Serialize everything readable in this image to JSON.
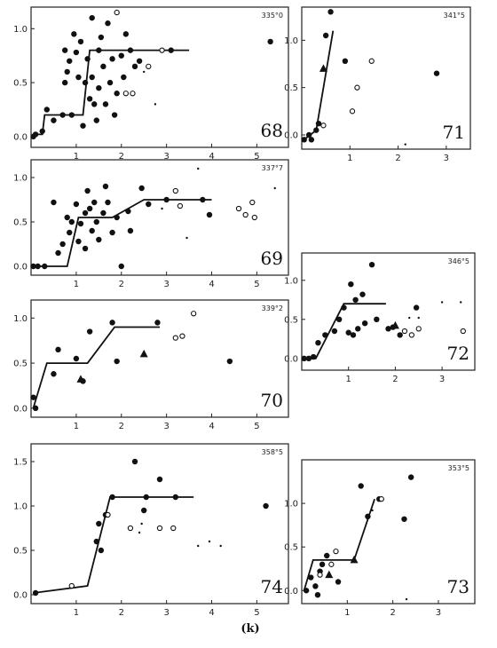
{
  "xlabel": "(k)",
  "chart_data": [
    {
      "type": "scatter",
      "panel_number": "68",
      "label": "335°0",
      "xlim": [
        0,
        5.7
      ],
      "ylim": [
        -0.1,
        1.2
      ],
      "xticks": [
        1,
        2,
        3,
        4,
        5
      ],
      "yticks": [
        0.0,
        0.5,
        1.0
      ],
      "ytick_labels": [
        "0.0",
        "0.5",
        "1.0"
      ],
      "fit_line": {
        "x": [
          0.05,
          0.25,
          0.3,
          0.7,
          1.15,
          1.3,
          3.5
        ],
        "y": [
          0.02,
          0.02,
          0.2,
          0.2,
          0.2,
          0.8,
          0.8
        ]
      },
      "filled": [
        [
          0.05,
          0.0
        ],
        [
          0.1,
          0.02
        ],
        [
          0.25,
          0.05
        ],
        [
          0.35,
          0.25
        ],
        [
          0.5,
          0.15
        ],
        [
          0.7,
          0.2
        ],
        [
          0.9,
          0.2
        ],
        [
          0.75,
          0.5
        ],
        [
          0.75,
          0.8
        ],
        [
          0.8,
          0.6
        ],
        [
          0.85,
          0.7
        ],
        [
          0.95,
          0.95
        ],
        [
          1.0,
          0.78
        ],
        [
          1.05,
          0.55
        ],
        [
          1.1,
          0.88
        ],
        [
          1.15,
          0.1
        ],
        [
          1.2,
          0.5
        ],
        [
          1.25,
          0.72
        ],
        [
          1.3,
          0.35
        ],
        [
          1.35,
          0.55
        ],
        [
          1.35,
          1.1
        ],
        [
          1.4,
          0.3
        ],
        [
          1.45,
          0.15
        ],
        [
          1.5,
          0.45
        ],
        [
          1.5,
          0.8
        ],
        [
          1.55,
          0.92
        ],
        [
          1.6,
          0.65
        ],
        [
          1.65,
          0.3
        ],
        [
          1.7,
          1.05
        ],
        [
          1.75,
          0.5
        ],
        [
          1.8,
          0.72
        ],
        [
          1.85,
          0.2
        ],
        [
          1.9,
          0.4
        ],
        [
          2.0,
          0.75
        ],
        [
          2.05,
          0.55
        ],
        [
          2.1,
          0.95
        ],
        [
          2.2,
          0.8
        ],
        [
          2.3,
          0.65
        ],
        [
          2.4,
          0.7
        ],
        [
          3.1,
          0.8
        ],
        [
          5.3,
          0.88
        ]
      ],
      "open": [
        [
          1.9,
          1.15
        ],
        [
          2.1,
          0.4
        ],
        [
          2.25,
          0.4
        ],
        [
          2.6,
          0.65
        ],
        [
          2.9,
          0.8
        ]
      ],
      "triangles": [],
      "dots": [
        [
          2.5,
          0.6
        ],
        [
          2.75,
          0.3
        ]
      ]
    },
    {
      "type": "scatter",
      "panel_number": "71",
      "label": "341°5",
      "xlim": [
        0,
        3.5
      ],
      "ylim": [
        -0.15,
        1.35
      ],
      "xticks": [
        1,
        2,
        3
      ],
      "yticks": [
        0.0,
        0.5,
        1.0
      ],
      "ytick_labels": [
        "0.0",
        "0.5",
        "1.0"
      ],
      "fit_line": {
        "x": [
          0.05,
          0.3,
          0.65
        ],
        "y": [
          -0.05,
          0.05,
          1.1
        ]
      },
      "filled": [
        [
          0.05,
          -0.05
        ],
        [
          0.15,
          0.0
        ],
        [
          0.2,
          -0.05
        ],
        [
          0.3,
          0.05
        ],
        [
          0.35,
          0.12
        ],
        [
          0.5,
          1.05
        ],
        [
          0.6,
          1.3
        ],
        [
          0.9,
          0.78
        ],
        [
          2.8,
          0.65
        ]
      ],
      "open": [
        [
          0.45,
          0.1
        ],
        [
          1.05,
          0.25
        ],
        [
          1.15,
          0.5
        ],
        [
          1.45,
          0.78
        ]
      ],
      "triangles": [
        [
          0.45,
          0.7
        ]
      ],
      "dots": [
        [
          2.15,
          -0.1
        ]
      ]
    },
    {
      "type": "scatter",
      "panel_number": "69",
      "label": "337°7",
      "xlim": [
        0,
        5.7
      ],
      "ylim": [
        -0.1,
        1.2
      ],
      "xticks": [
        1,
        2,
        3,
        4,
        5
      ],
      "yticks": [
        0.0,
        0.5,
        1.0
      ],
      "ytick_labels": [
        "0.0",
        "0.5",
        "1.0"
      ],
      "fit_line": {
        "x": [
          0.05,
          0.8,
          1.05,
          1.8,
          2.5,
          4.0
        ],
        "y": [
          0.0,
          0.0,
          0.55,
          0.55,
          0.75,
          0.75
        ]
      },
      "filled": [
        [
          0.05,
          0.0
        ],
        [
          0.15,
          0.0
        ],
        [
          0.3,
          0.0
        ],
        [
          0.5,
          0.72
        ],
        [
          0.6,
          0.15
        ],
        [
          0.7,
          0.25
        ],
        [
          0.8,
          0.55
        ],
        [
          0.85,
          0.38
        ],
        [
          0.9,
          0.5
        ],
        [
          1.0,
          0.7
        ],
        [
          1.05,
          0.28
        ],
        [
          1.1,
          0.48
        ],
        [
          1.2,
          0.6
        ],
        [
          1.2,
          0.2
        ],
        [
          1.25,
          0.85
        ],
        [
          1.3,
          0.65
        ],
        [
          1.35,
          0.4
        ],
        [
          1.4,
          0.72
        ],
        [
          1.45,
          0.5
        ],
        [
          1.5,
          0.3
        ],
        [
          1.6,
          0.6
        ],
        [
          1.65,
          0.9
        ],
        [
          1.7,
          0.72
        ],
        [
          1.8,
          0.38
        ],
        [
          1.9,
          0.55
        ],
        [
          2.0,
          0.0
        ],
        [
          2.15,
          0.62
        ],
        [
          2.2,
          0.4
        ],
        [
          2.45,
          0.88
        ],
        [
          2.6,
          0.7
        ],
        [
          3.0,
          0.75
        ],
        [
          3.8,
          0.75
        ],
        [
          3.95,
          0.58
        ]
      ],
      "open": [
        [
          3.2,
          0.85
        ],
        [
          3.3,
          0.68
        ],
        [
          4.6,
          0.65
        ],
        [
          4.75,
          0.58
        ],
        [
          4.9,
          0.72
        ],
        [
          4.95,
          0.55
        ]
      ],
      "triangles": [],
      "dots": [
        [
          2.9,
          0.65
        ],
        [
          3.45,
          0.32
        ],
        [
          3.7,
          1.1
        ],
        [
          5.4,
          0.88
        ]
      ]
    },
    {
      "type": "scatter",
      "panel_number": "72",
      "label": "346°5",
      "xlim": [
        0,
        3.7
      ],
      "ylim": [
        -0.15,
        1.35
      ],
      "xticks": [
        1,
        2,
        3
      ],
      "yticks": [
        0.0,
        0.5,
        1.0
      ],
      "ytick_labels": [
        "0.0",
        "0.5",
        "1.0"
      ],
      "fit_line": {
        "x": [
          0.05,
          0.3,
          0.9,
          1.8
        ],
        "y": [
          0.0,
          0.0,
          0.7,
          0.7
        ]
      },
      "filled": [
        [
          0.05,
          0.0
        ],
        [
          0.15,
          0.0
        ],
        [
          0.25,
          0.02
        ],
        [
          0.35,
          0.2
        ],
        [
          0.5,
          0.3
        ],
        [
          0.7,
          0.35
        ],
        [
          0.8,
          0.5
        ],
        [
          0.9,
          0.65
        ],
        [
          1.0,
          0.33
        ],
        [
          1.05,
          0.95
        ],
        [
          1.1,
          0.3
        ],
        [
          1.15,
          0.75
        ],
        [
          1.2,
          0.38
        ],
        [
          1.3,
          0.82
        ],
        [
          1.35,
          0.45
        ],
        [
          1.5,
          1.2
        ],
        [
          1.6,
          0.5
        ],
        [
          1.85,
          0.38
        ],
        [
          1.95,
          0.4
        ],
        [
          2.1,
          0.3
        ],
        [
          2.45,
          0.65
        ]
      ],
      "open": [
        [
          2.2,
          0.35
        ],
        [
          2.35,
          0.3
        ],
        [
          2.5,
          0.38
        ],
        [
          3.45,
          0.35
        ]
      ],
      "triangles": [
        [
          2.0,
          0.42
        ]
      ],
      "dots": [
        [
          2.3,
          0.52
        ],
        [
          2.5,
          0.52
        ],
        [
          3.0,
          0.72
        ],
        [
          3.4,
          0.72
        ]
      ]
    },
    {
      "type": "scatter",
      "panel_number": "70",
      "label": "339°2",
      "xlim": [
        0,
        5.7
      ],
      "ylim": [
        -0.1,
        1.2
      ],
      "xticks": [
        1,
        2,
        3,
        4,
        5
      ],
      "yticks": [
        0.0,
        0.5,
        1.0
      ],
      "ytick_labels": [
        "0.0",
        "0.5",
        "1.0"
      ],
      "fit_line": {
        "x": [
          0.05,
          0.35,
          1.25,
          1.85,
          2.85
        ],
        "y": [
          0.0,
          0.5,
          0.5,
          0.9,
          0.9
        ]
      },
      "filled": [
        [
          0.05,
          0.12
        ],
        [
          0.1,
          0.0
        ],
        [
          0.5,
          0.38
        ],
        [
          0.6,
          0.65
        ],
        [
          1.0,
          0.55
        ],
        [
          1.15,
          0.3
        ],
        [
          1.3,
          0.85
        ],
        [
          1.8,
          0.95
        ],
        [
          1.9,
          0.52
        ],
        [
          2.8,
          0.95
        ],
        [
          4.4,
          0.52
        ]
      ],
      "open": [
        [
          3.2,
          0.78
        ],
        [
          3.35,
          0.8
        ],
        [
          3.6,
          1.05
        ]
      ],
      "triangles": [
        [
          1.1,
          0.32
        ],
        [
          2.5,
          0.6
        ]
      ],
      "dots": []
    },
    {
      "type": "scatter",
      "panel_number": "74",
      "label": "358°5",
      "xlim": [
        0,
        5.7
      ],
      "ylim": [
        -0.1,
        1.7
      ],
      "xticks": [
        1,
        2,
        3,
        4,
        5
      ],
      "yticks": [
        0.0,
        0.5,
        1.0,
        1.5
      ],
      "ytick_labels": [
        "0.0",
        "0.5",
        "1.0",
        "1.5"
      ],
      "fit_line": {
        "x": [
          0.05,
          1.25,
          1.75,
          3.6
        ],
        "y": [
          0.02,
          0.1,
          1.1,
          1.1
        ]
      },
      "filled": [
        [
          0.1,
          0.02
        ],
        [
          1.45,
          0.6
        ],
        [
          1.5,
          0.8
        ],
        [
          1.55,
          0.5
        ],
        [
          1.65,
          0.9
        ],
        [
          1.8,
          1.1
        ],
        [
          2.3,
          1.5
        ],
        [
          2.5,
          0.95
        ],
        [
          2.55,
          1.1
        ],
        [
          2.85,
          1.3
        ],
        [
          3.2,
          1.1
        ],
        [
          5.2,
          1.0
        ]
      ],
      "open": [
        [
          0.9,
          0.1
        ],
        [
          1.7,
          0.9
        ],
        [
          2.2,
          0.75
        ],
        [
          2.85,
          0.75
        ],
        [
          3.15,
          0.75
        ]
      ],
      "triangles": [],
      "dots": [
        [
          2.4,
          0.7
        ],
        [
          2.45,
          0.8
        ],
        [
          3.7,
          0.55
        ],
        [
          3.95,
          0.6
        ],
        [
          4.2,
          0.55
        ]
      ]
    },
    {
      "type": "scatter",
      "panel_number": "73",
      "label": "353°5",
      "xlim": [
        0,
        3.8
      ],
      "ylim": [
        -0.15,
        1.5
      ],
      "xticks": [
        1,
        2,
        3
      ],
      "yticks": [
        0.0,
        0.5,
        1.0
      ],
      "ytick_labels": [
        "0.0",
        "0.5",
        "1.0"
      ],
      "fit_line": {
        "x": [
          0.05,
          0.25,
          0.55,
          1.15,
          1.6
        ],
        "y": [
          0.0,
          0.35,
          0.35,
          0.35,
          1.05
        ]
      },
      "filled": [
        [
          0.1,
          0.0
        ],
        [
          0.2,
          0.15
        ],
        [
          0.3,
          0.05
        ],
        [
          0.35,
          -0.05
        ],
        [
          0.4,
          0.22
        ],
        [
          0.45,
          0.3
        ],
        [
          0.55,
          0.4
        ],
        [
          0.8,
          0.1
        ],
        [
          1.3,
          1.2
        ],
        [
          1.45,
          0.85
        ],
        [
          1.7,
          1.05
        ],
        [
          2.25,
          0.82
        ],
        [
          2.4,
          1.3
        ]
      ],
      "open": [
        [
          0.4,
          0.18
        ],
        [
          0.65,
          0.3
        ],
        [
          0.75,
          0.45
        ],
        [
          1.75,
          1.05
        ]
      ],
      "triangles": [
        [
          0.6,
          0.18
        ],
        [
          1.15,
          0.35
        ]
      ],
      "dots": [
        [
          1.55,
          0.92
        ],
        [
          2.3,
          -0.1
        ]
      ]
    }
  ]
}
